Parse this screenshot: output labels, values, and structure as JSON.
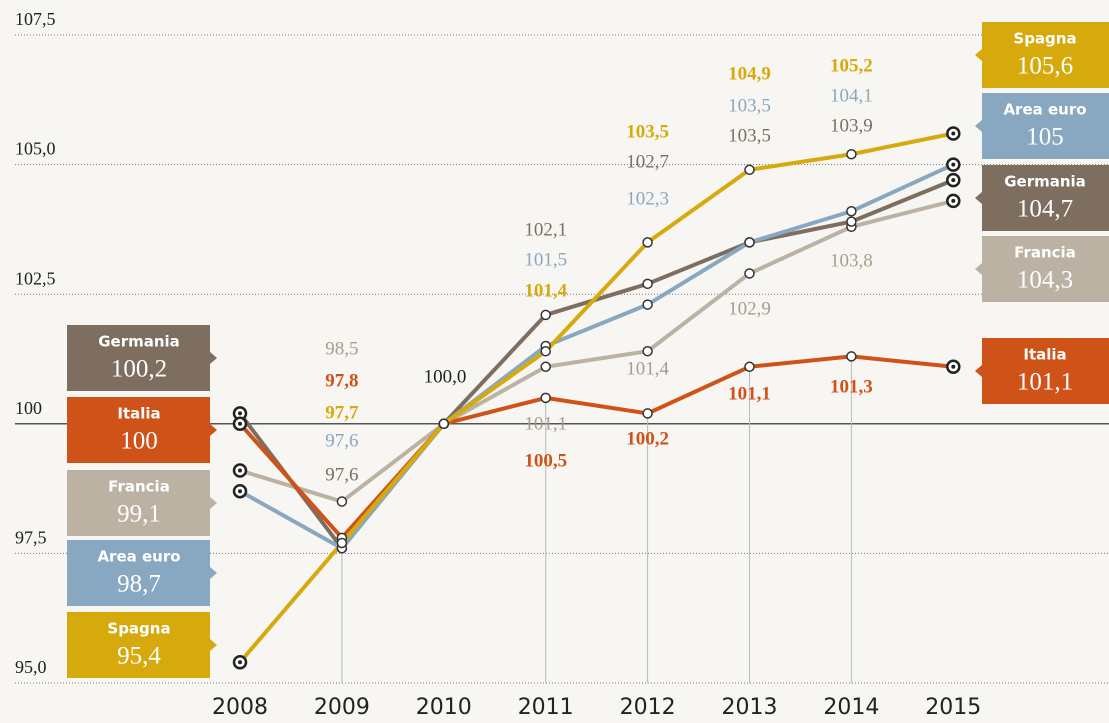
{
  "chart_data": {
    "type": "line",
    "categories": [
      "2008",
      "2009",
      "2010",
      "2011",
      "2012",
      "2013",
      "2014",
      "2015"
    ],
    "series": [
      {
        "name": "Germania",
        "color": "#7d6e5f",
        "values": [
          100.2,
          97.6,
          100,
          102.1,
          102.7,
          103.5,
          103.9,
          104.7
        ],
        "value_labels": [
          "100,2",
          "97,6",
          null,
          "102,1",
          "102,7",
          "103,5",
          "103,9",
          "104,7"
        ]
      },
      {
        "name": "Italia",
        "color": "#cf5218",
        "values": [
          100,
          97.8,
          100,
          100.5,
          100.2,
          101.1,
          101.3,
          101.1
        ],
        "value_labels": [
          "100",
          "97,8",
          null,
          "100,5",
          "100,2",
          "101,1",
          "101,3",
          "101,1"
        ]
      },
      {
        "name": "Francia",
        "color": "#bcb2a3",
        "values": [
          99.1,
          98.5,
          100,
          101.1,
          101.4,
          102.9,
          103.8,
          104.3
        ],
        "value_labels": [
          "99,1",
          "98,5",
          null,
          "101,1",
          "101,4",
          "102,9",
          "103,8",
          "104,3"
        ]
      },
      {
        "name": "Area euro",
        "color": "#88a8c1",
        "values": [
          98.7,
          97.6,
          100,
          101.5,
          102.3,
          103.5,
          104.1,
          105
        ],
        "value_labels": [
          "98,7",
          "97,6",
          null,
          "101,5",
          "102,3",
          "103,5",
          "104,1",
          "105"
        ]
      },
      {
        "name": "Spagna",
        "color": "#d6aa0c",
        "values": [
          95.4,
          97.7,
          100,
          101.4,
          103.5,
          104.9,
          105.2,
          105.6
        ],
        "value_labels": [
          "95,4",
          "97,7",
          null,
          "101,4",
          "103,5",
          "104,9",
          "105,2",
          "105,6"
        ]
      }
    ],
    "annotation": "100,0",
    "ylim": [
      95,
      107.5
    ],
    "yticks": [
      {
        "value": 95,
        "label": "95,0"
      },
      {
        "value": 97.5,
        "label": "97,5"
      },
      100,
      {
        "value": 102.5,
        "label": "102,5"
      },
      {
        "value": 105,
        "label": "105,0"
      },
      {
        "value": 107.5,
        "label": "107,5"
      }
    ],
    "reference_line": 100,
    "grid": true
  }
}
